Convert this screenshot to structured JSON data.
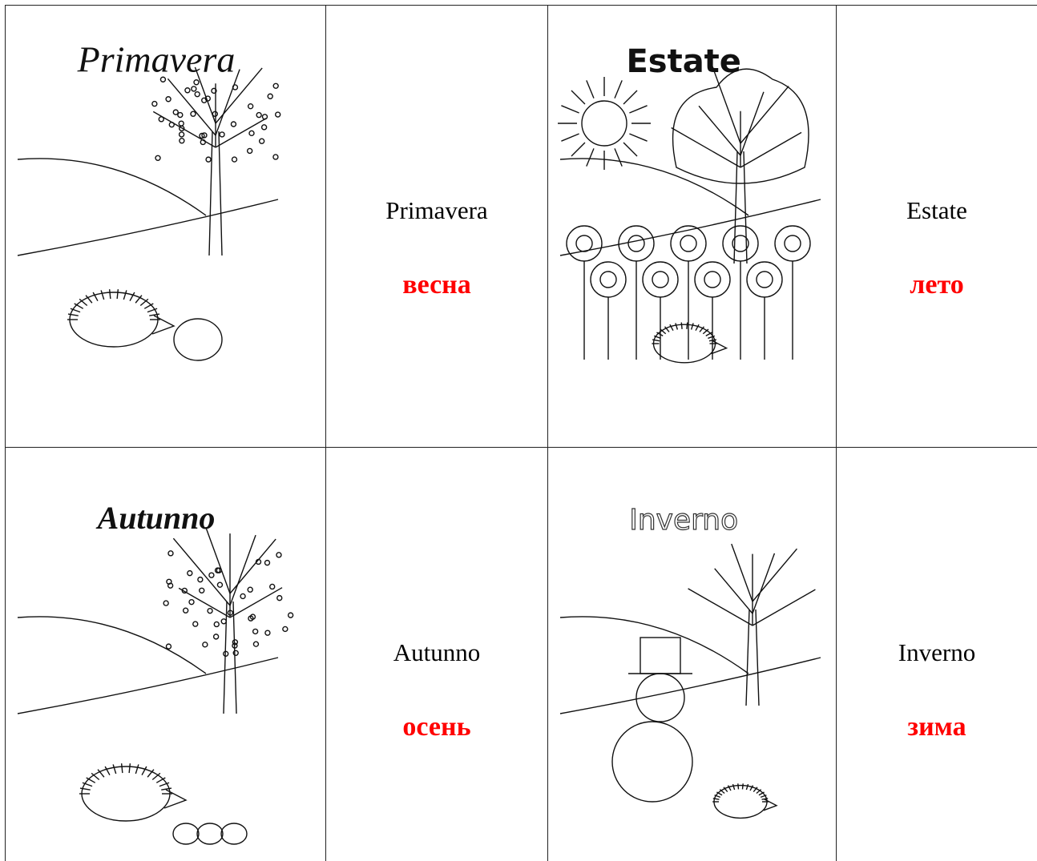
{
  "table": {
    "rows": [
      [
        {
          "picture_title": "Primavera"
        },
        {
          "word": "Primavera",
          "translation": "весна"
        },
        {
          "picture_title": "Estate"
        },
        {
          "word": "Estate",
          "translation": "лето"
        }
      ],
      [
        {
          "picture_title": "Autunno"
        },
        {
          "word": "Autunno",
          "translation": "осень"
        },
        {
          "picture_title": "Inverno"
        },
        {
          "word": "Inverno",
          "translation": "зима"
        }
      ]
    ]
  }
}
